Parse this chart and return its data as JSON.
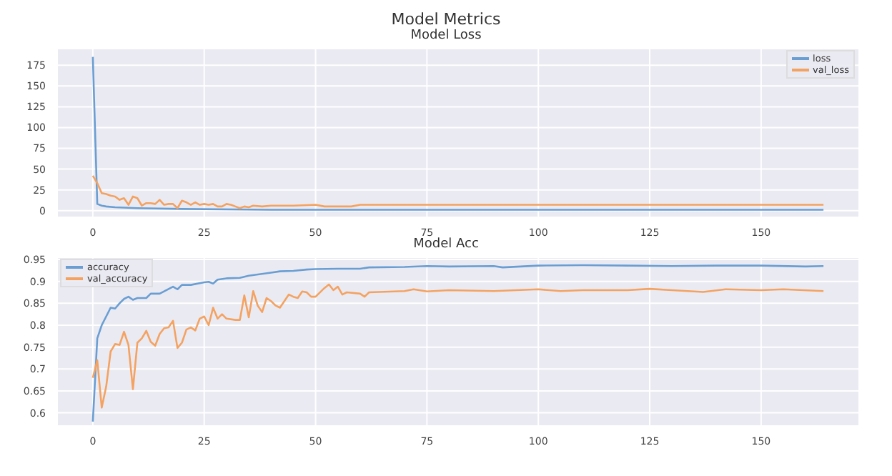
{
  "chart_data": [
    {
      "type": "line",
      "title": "Model Loss",
      "annotations": [
        "Model Metrics"
      ],
      "xlim": [
        -8,
        172
      ],
      "xticks": [
        0,
        25,
        50,
        75,
        100,
        125,
        150
      ],
      "ylim": [
        -8,
        195
      ],
      "yticks": [
        0,
        25,
        50,
        75,
        100,
        125,
        150,
        175
      ],
      "grid": true,
      "legend": "top right",
      "marker": "none",
      "line_style": "solid",
      "series": [
        {
          "name": "loss",
          "color": "#6a9ed2",
          "x": [
            0,
            1,
            2,
            3,
            5,
            10,
            20,
            40,
            80,
            164
          ],
          "values": [
            185,
            8,
            6,
            5,
            4,
            3,
            2,
            1,
            1,
            1
          ]
        },
        {
          "name": "val_loss",
          "color": "#f4a261",
          "x": [
            0,
            1,
            2,
            3,
            4,
            5,
            6,
            7,
            8,
            9,
            10,
            11,
            12,
            13,
            14,
            15,
            16,
            17,
            18,
            19,
            20,
            21,
            22,
            23,
            24,
            25,
            26,
            27,
            28,
            29,
            30,
            31,
            32,
            33,
            34,
            35,
            36,
            38,
            40,
            45,
            50,
            52,
            55,
            58,
            60,
            70,
            100,
            130,
            164
          ],
          "values": [
            42,
            33,
            21,
            20,
            18,
            17,
            13,
            15,
            7,
            17,
            15,
            6,
            9,
            9,
            8,
            13,
            7,
            8,
            8,
            3,
            12,
            10,
            7,
            10,
            7,
            8,
            7,
            8,
            5,
            5,
            8,
            7,
            5,
            3,
            5,
            4,
            6,
            5,
            6,
            6,
            7,
            5,
            5,
            5,
            7,
            7,
            7,
            7,
            7
          ]
        }
      ]
    },
    {
      "type": "line",
      "title": "Model Acc",
      "xlim": [
        -8,
        172
      ],
      "xticks": [
        0,
        25,
        50,
        75,
        100,
        125,
        150
      ],
      "ylim": [
        0.57,
        0.955
      ],
      "yticks": [
        0.6,
        0.65,
        0.7,
        0.75,
        0.8,
        0.85,
        0.9,
        0.95
      ],
      "grid": true,
      "legend": "top left",
      "marker": "none",
      "line_style": "solid",
      "series": [
        {
          "name": "accuracy",
          "color": "#6a9ed2",
          "x": [
            0,
            1,
            2,
            3,
            4,
            5,
            6,
            7,
            8,
            9,
            10,
            12,
            13,
            15,
            18,
            19,
            20,
            22,
            25,
            26,
            27,
            28,
            30,
            33,
            35,
            40,
            42,
            45,
            48,
            50,
            55,
            60,
            62,
            70,
            75,
            80,
            90,
            92,
            100,
            110,
            120,
            130,
            140,
            150,
            160,
            164
          ],
          "values": [
            0.58,
            0.77,
            0.8,
            0.82,
            0.84,
            0.838,
            0.85,
            0.86,
            0.865,
            0.858,
            0.862,
            0.862,
            0.872,
            0.872,
            0.888,
            0.882,
            0.892,
            0.892,
            0.898,
            0.899,
            0.895,
            0.904,
            0.907,
            0.908,
            0.913,
            0.92,
            0.923,
            0.924,
            0.927,
            0.928,
            0.929,
            0.929,
            0.932,
            0.933,
            0.935,
            0.934,
            0.935,
            0.932,
            0.936,
            0.937,
            0.936,
            0.935,
            0.936,
            0.936,
            0.934,
            0.935
          ]
        },
        {
          "name": "val_accuracy",
          "color": "#f4a261",
          "x": [
            0,
            1,
            2,
            3,
            4,
            5,
            6,
            7,
            8,
            9,
            10,
            11,
            12,
            13,
            14,
            15,
            16,
            17,
            18,
            19,
            20,
            21,
            22,
            23,
            24,
            25,
            26,
            27,
            28,
            29,
            30,
            32,
            33,
            34,
            35,
            36,
            37,
            38,
            39,
            40,
            41,
            42,
            44,
            45,
            46,
            47,
            48,
            49,
            50,
            52,
            53,
            54,
            55,
            56,
            57,
            60,
            61,
            62,
            70,
            72,
            75,
            80,
            90,
            100,
            105,
            110,
            120,
            125,
            130,
            137,
            142,
            150,
            155,
            164
          ],
          "values": [
            0.68,
            0.72,
            0.612,
            0.66,
            0.74,
            0.757,
            0.755,
            0.785,
            0.755,
            0.654,
            0.76,
            0.77,
            0.787,
            0.762,
            0.753,
            0.78,
            0.793,
            0.795,
            0.81,
            0.748,
            0.76,
            0.79,
            0.795,
            0.788,
            0.815,
            0.82,
            0.8,
            0.84,
            0.815,
            0.825,
            0.815,
            0.812,
            0.812,
            0.868,
            0.818,
            0.878,
            0.845,
            0.83,
            0.862,
            0.855,
            0.845,
            0.84,
            0.87,
            0.865,
            0.862,
            0.877,
            0.875,
            0.865,
            0.865,
            0.885,
            0.893,
            0.88,
            0.888,
            0.87,
            0.875,
            0.872,
            0.865,
            0.875,
            0.878,
            0.882,
            0.877,
            0.88,
            0.878,
            0.882,
            0.878,
            0.88,
            0.88,
            0.883,
            0.88,
            0.876,
            0.882,
            0.88,
            0.882,
            0.878
          ]
        }
      ]
    }
  ]
}
